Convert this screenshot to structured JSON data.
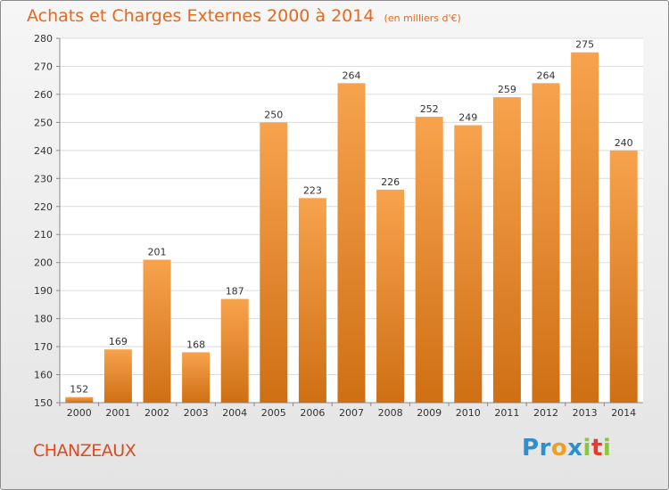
{
  "header": {
    "title": "Achats et Charges Externes 2000 à 2014",
    "unit_note": "(en milliers d'€)"
  },
  "footer": {
    "town": "CHANZEAUX",
    "logo_letters": [
      {
        "ch": "P",
        "color": "#2e8fd0"
      },
      {
        "ch": "r",
        "color": "#2e8fd0"
      },
      {
        "ch": "o",
        "color": "#f0a020"
      },
      {
        "ch": "x",
        "color": "#2e8fd0"
      },
      {
        "ch": "i",
        "color": "#8cc63f"
      },
      {
        "ch": "t",
        "color": "#e83a2a"
      },
      {
        "ch": "i",
        "color": "#8cc63f"
      }
    ]
  },
  "colors": {
    "bar_top": "#f7a34d",
    "bar_bottom": "#cf6f14",
    "grid": "#dcdcdc",
    "plot_bg": "#ffffff"
  },
  "chart_data": {
    "type": "bar",
    "categories": [
      "2000",
      "2001",
      "2002",
      "2003",
      "2004",
      "2005",
      "2006",
      "2007",
      "2008",
      "2009",
      "2010",
      "2011",
      "2012",
      "2013",
      "2014"
    ],
    "values": [
      152,
      169,
      201,
      168,
      187,
      250,
      223,
      264,
      226,
      252,
      249,
      259,
      264,
      275,
      240
    ],
    "ylim": [
      150,
      280
    ],
    "yticks": [
      150,
      160,
      170,
      180,
      190,
      200,
      210,
      220,
      230,
      240,
      250,
      260,
      270,
      280
    ],
    "grid": true
  }
}
